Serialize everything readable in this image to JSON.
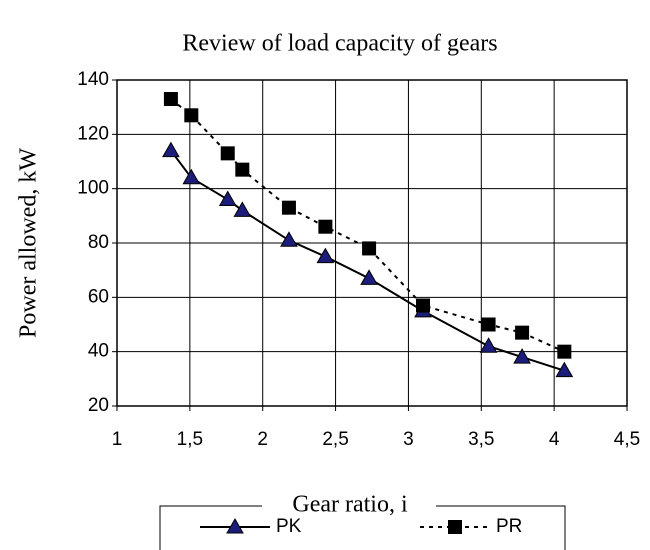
{
  "chart_data": {
    "type": "line",
    "title": "Review of load capacity of gears",
    "x_label": "Gear ratio, i",
    "y_label": "Power allowed, kW",
    "xlim": [
      1,
      4.5
    ],
    "xticks": [
      1,
      {
        "value": 1.5,
        "label": "1,5"
      },
      2,
      {
        "value": 2.5,
        "label": "2,5"
      },
      3,
      {
        "value": 3.5,
        "label": "3,5"
      },
      4,
      {
        "value": 4.5,
        "label": "4,5"
      }
    ],
    "ylim": [
      20,
      140
    ],
    "yticks": [
      20,
      40,
      60,
      80,
      100,
      120,
      140
    ],
    "grid": true,
    "legend": "bottom",
    "series": [
      {
        "name": "PK",
        "color": "#1c1c7a",
        "line_color": "#000000",
        "line_style": "solid",
        "marker": "triangle",
        "x": [
          1.37,
          1.51,
          1.76,
          1.86,
          2.18,
          2.43,
          2.73,
          3.1,
          3.55,
          3.78,
          4.07
        ],
        "values": [
          114,
          104,
          96,
          92,
          81,
          75,
          67,
          55,
          42,
          38,
          33
        ]
      },
      {
        "name": "PR",
        "color": "#000000",
        "line_color": "#000000",
        "line_style": "dotted",
        "marker": "square",
        "x": [
          1.37,
          1.51,
          1.76,
          1.86,
          2.18,
          2.43,
          2.73,
          3.1,
          3.55,
          3.78,
          4.07
        ],
        "values": [
          133,
          127,
          113,
          107,
          93,
          86,
          78,
          57,
          50,
          47,
          40
        ]
      }
    ]
  }
}
